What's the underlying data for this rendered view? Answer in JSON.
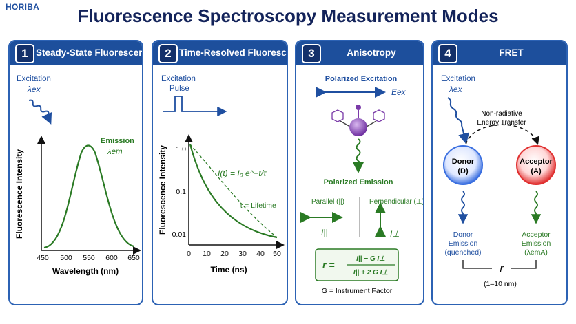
{
  "brand": "HORIBA",
  "title": "Fluorescence Spectroscopy Measurement Modes",
  "panels": [
    {
      "number": "1",
      "title": "Steady-State Fluorescence"
    },
    {
      "number": "2",
      "title": "Time-Resolved Fluorescence"
    },
    {
      "number": "3",
      "title": "Anisotropy"
    },
    {
      "number": "4",
      "title": "FRET"
    }
  ],
  "steady_state": {
    "excitation": "Excitation",
    "lambda_ex": "λex",
    "emission": "Emission",
    "lambda_em": "λem",
    "ylabel": "Fluorescence Intensity",
    "xlabel": "Wavelength (nm)",
    "xticks": [
      "450",
      "500",
      "550",
      "600",
      "650"
    ]
  },
  "time_resolved": {
    "excitation": "Excitation",
    "pulse": "Pulse",
    "equation": "I(t) = I₀ e^−t/τ",
    "tau_label": "τ = Lifetime",
    "ylabel": "Fluorescence Intensity",
    "xlabel": "Time (ns)",
    "yticks": [
      "1.0",
      "0.1",
      "0.01"
    ],
    "xticks": [
      "0",
      "10",
      "20",
      "30",
      "40",
      "50"
    ]
  },
  "anisotropy": {
    "polarized_excitation": "Polarized Excitation",
    "e_ex": "Eex",
    "polarized_emission": "Polarized Emission",
    "parallel": "Parallel (||)",
    "perpendicular": "Perpendicular (⊥)",
    "i_par": "I||",
    "i_perp": "I⊥",
    "formula_lhs": "r =",
    "formula_num": "I|| − G I⊥",
    "formula_den": "I|| + 2 G I⊥",
    "g_note": "G = Instrument Factor"
  },
  "fret": {
    "excitation": "Excitation",
    "lambda_ex": "λex",
    "transfer_line1": "Non-radiative",
    "transfer_line2": "Energy Transfer",
    "donor_line1": "Donor",
    "donor_line2": "(D)",
    "acceptor_line1": "Acceptor",
    "acceptor_line2": "(A)",
    "donor_em_1": "Donor",
    "donor_em_2": "Emission",
    "donor_em_3": "(quenched)",
    "acc_em_1": "Acceptor",
    "acc_em_2": "Emission",
    "acc_em_3": "(λemA)",
    "r_label": "r",
    "distance": "(1–10 nm)"
  },
  "colors": {
    "header": "#1d4f9c",
    "blue": "#1f4fa0",
    "green": "#2a7a24",
    "donor": "#3a6fe0",
    "acceptor": "#e03030"
  }
}
